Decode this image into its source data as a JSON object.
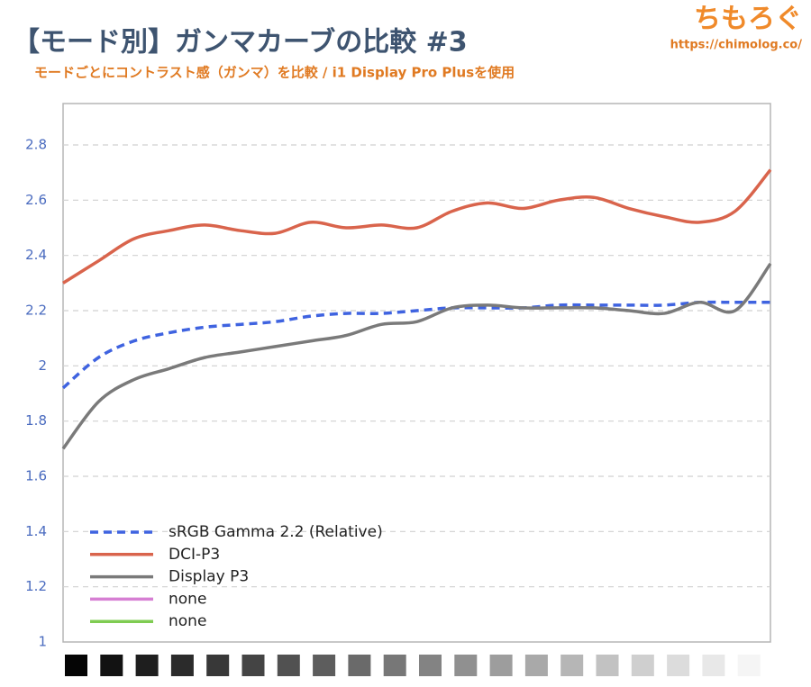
{
  "chart_data": {
    "type": "line",
    "title": "【モード別】ガンマカーブの比較 #3",
    "subtitle": "モードごとにコントラスト感（ガンマ）を比較 / i1 Display Pro Plusを使用",
    "watermark": "ちもろぐ",
    "watermark_url": "https://chimolog.co/",
    "categories": [
      null,
      null,
      null,
      null,
      null,
      null,
      null,
      null,
      null,
      null,
      null,
      null,
      null,
      null,
      null,
      null,
      null,
      null,
      null,
      null,
      null
    ],
    "series": [
      {
        "name": "sRGB Gamma 2.2 (Relative)",
        "color": "#3f63e0",
        "dashed": true,
        "values": [
          1.92,
          2.03,
          2.09,
          2.12,
          2.14,
          2.15,
          2.16,
          2.18,
          2.19,
          2.19,
          2.2,
          2.21,
          2.21,
          2.21,
          2.22,
          2.22,
          2.22,
          2.22,
          2.23,
          2.23,
          2.23
        ]
      },
      {
        "name": "DCI-P3",
        "color": "#d9644c",
        "values": [
          2.3,
          2.38,
          2.46,
          2.49,
          2.51,
          2.49,
          2.48,
          2.52,
          2.5,
          2.51,
          2.5,
          2.56,
          2.59,
          2.57,
          2.6,
          2.61,
          2.57,
          2.54,
          2.52,
          2.56,
          2.71
        ]
      },
      {
        "name": "Display P3",
        "color": "#7a7a7a",
        "values": [
          1.7,
          1.87,
          1.95,
          1.99,
          2.03,
          2.05,
          2.07,
          2.09,
          2.11,
          2.15,
          2.16,
          2.21,
          2.22,
          2.21,
          2.21,
          2.21,
          2.2,
          2.19,
          2.23,
          2.2,
          2.37
        ]
      },
      {
        "name": "none",
        "color": "#d67fd3",
        "values": [
          null,
          null,
          null,
          null,
          null,
          null,
          null,
          null,
          null,
          null,
          null,
          null,
          null,
          null,
          null,
          null,
          null,
          null,
          null,
          null,
          null
        ]
      },
      {
        "name": "none",
        "color": "#7fcc52",
        "values": [
          null,
          null,
          null,
          null,
          null,
          null,
          null,
          null,
          null,
          null,
          null,
          null,
          null,
          null,
          null,
          null,
          null,
          null,
          null,
          null,
          null
        ]
      }
    ],
    "ylim": [
      1,
      2.95
    ],
    "yticks": [
      1,
      1.2,
      1.4,
      1.6,
      1.8,
      2,
      2.2,
      2.4,
      2.6,
      2.8
    ],
    "grid": true,
    "legend": "lower left"
  }
}
